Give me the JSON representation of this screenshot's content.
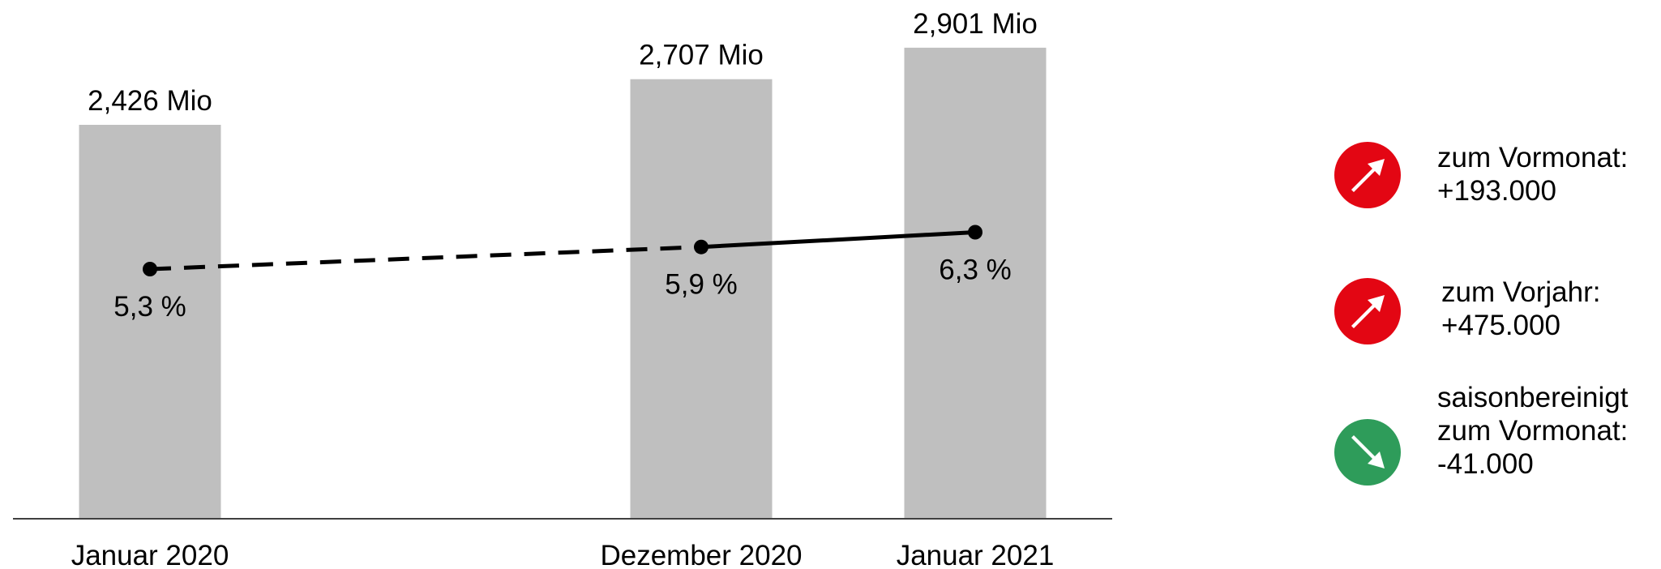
{
  "chart_data": {
    "type": "bar",
    "categories": [
      "Januar 2020",
      "Dezember 2020",
      "Januar 2021"
    ],
    "series": [
      {
        "type": "bar",
        "values": [
          2.426,
          2.707,
          2.901
        ],
        "value_labels": [
          "2,426 Mio",
          "2,707 Mio",
          "2,901 Mio"
        ],
        "color": "#bfbfbf"
      },
      {
        "type": "line",
        "values": [
          5.3,
          5.9,
          6.3
        ],
        "value_labels": [
          "5,3 %",
          "5,9 %",
          "6,3 %"
        ],
        "color": "#000000",
        "segment_styles": [
          "dashed",
          "solid"
        ]
      }
    ],
    "title": "",
    "xlabel": "",
    "ylabel": "",
    "grid": false
  },
  "legend": {
    "items": [
      {
        "lines": [
          "zum Vormonat:",
          "+193.000"
        ],
        "icon": "arrow-up-right-icon",
        "color": "#e30613"
      },
      {
        "lines": [
          "zum Vorjahr:",
          "+475.000"
        ],
        "icon": "arrow-up-right-icon",
        "color": "#e30613"
      },
      {
        "lines": [
          "saisonbereinigt",
          "zum Vormonat:",
          "-41.000"
        ],
        "icon": "arrow-down-right-icon",
        "color": "#2e9c5a"
      }
    ]
  }
}
